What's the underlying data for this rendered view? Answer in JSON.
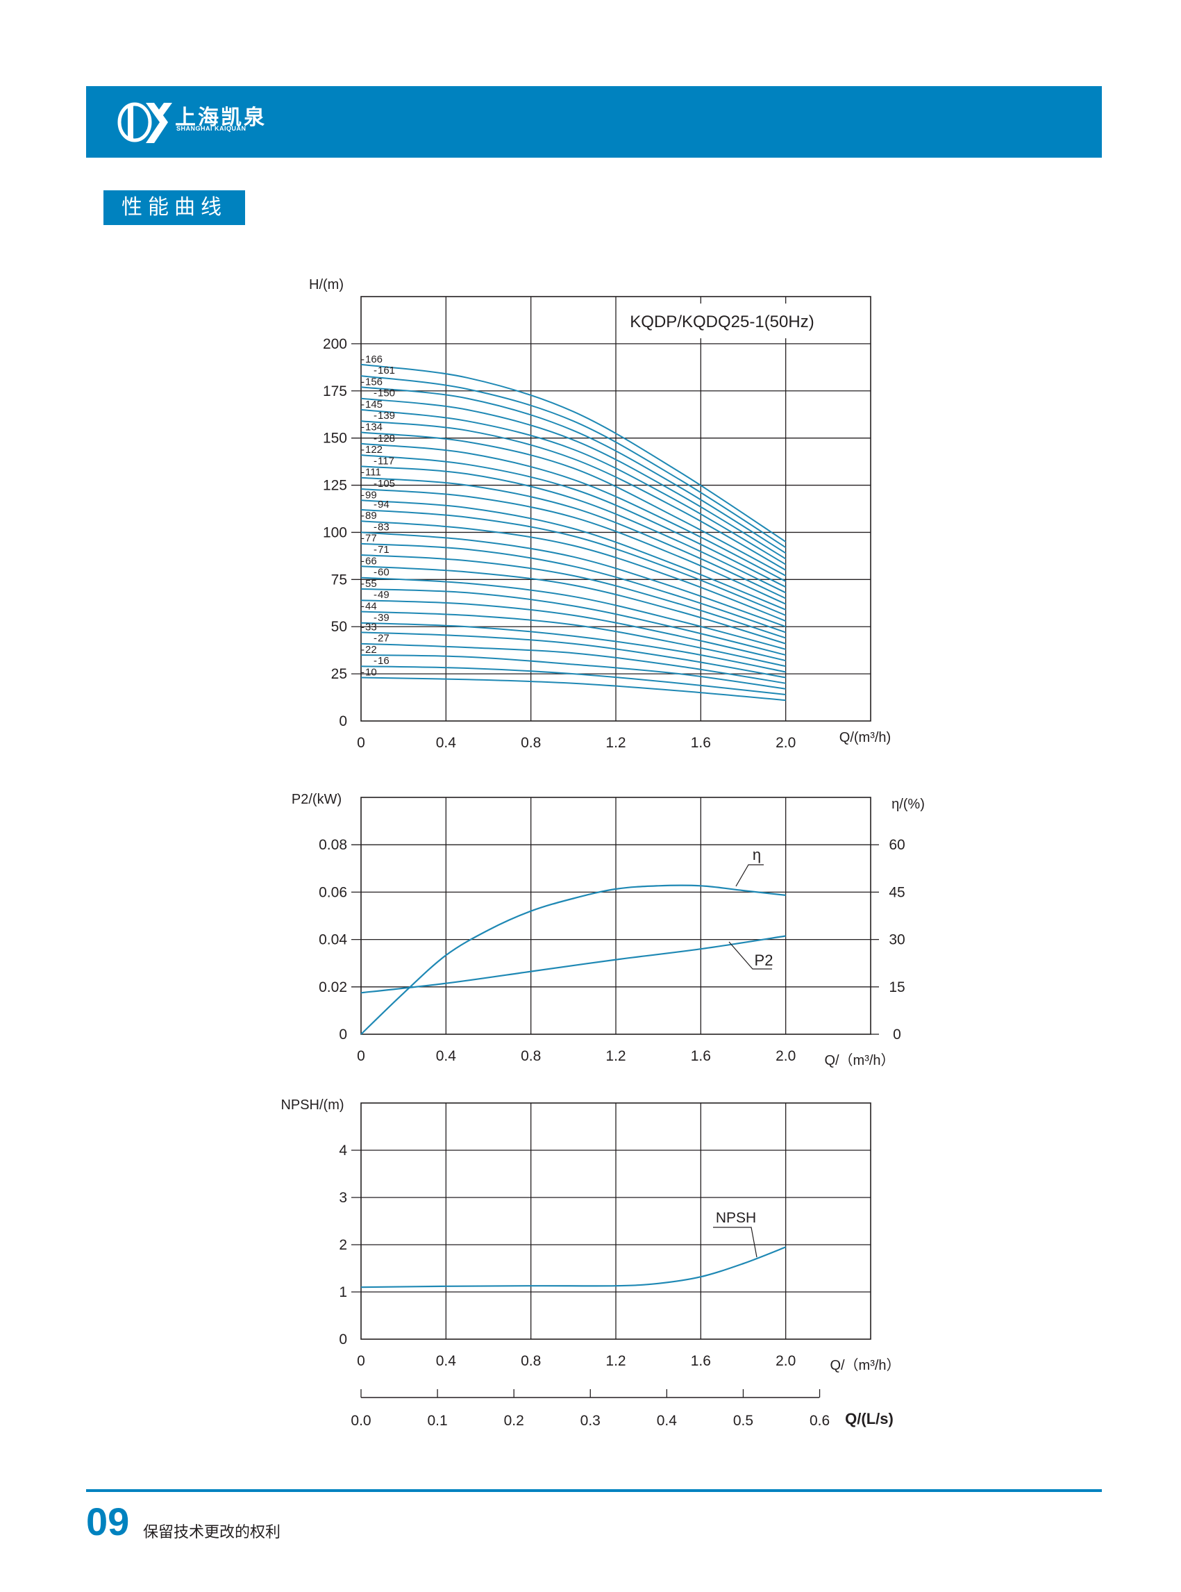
{
  "header": {
    "logo_cn": "上海凯泉",
    "logo_en": "SHANGHAI KAIQUAN",
    "bar_color": "#0082bf"
  },
  "section_label": "性能曲线",
  "footer": {
    "page_number": "09",
    "note": "保留技术更改的权利"
  },
  "colors": {
    "accent": "#0082bf",
    "curve": "#1e88b4",
    "grid": "#231f20"
  },
  "chart_data": [
    {
      "type": "line",
      "title": "KQDP/KQDQ25-1(50Hz)",
      "ylabel": "H/(m)",
      "xlabel": "Q/(m³/h)",
      "xlim": [
        0,
        2.4
      ],
      "ylim": [
        0,
        225
      ],
      "x_ticks": [
        "0",
        "0.4",
        "0.8",
        "1.2",
        "1.6",
        "2.0"
      ],
      "y_ticks": [
        "0",
        "25",
        "50",
        "75",
        "100",
        "125",
        "150",
        "175",
        "200"
      ],
      "grid": true,
      "series": [
        {
          "name": "166",
          "x": [
            0,
            0.5,
            1.0,
            1.5,
            2.0
          ],
          "values": [
            189,
            182,
            164,
            132,
            95
          ]
        },
        {
          "name": "161",
          "x": [
            0,
            0.5,
            1.0,
            1.5,
            2.0
          ],
          "values": [
            183,
            176,
            159,
            128,
            92
          ]
        },
        {
          "name": "156",
          "x": [
            0,
            0.5,
            1.0,
            1.5,
            2.0
          ],
          "values": [
            177,
            171,
            154,
            124,
            89
          ]
        },
        {
          "name": "150",
          "x": [
            0,
            0.5,
            1.0,
            1.5,
            2.0
          ],
          "values": [
            171,
            165,
            149,
            120,
            86
          ]
        },
        {
          "name": "145",
          "x": [
            0,
            0.5,
            1.0,
            1.5,
            2.0
          ],
          "values": [
            165,
            159,
            144,
            116,
            83
          ]
        },
        {
          "name": "139",
          "x": [
            0,
            0.5,
            1.0,
            1.5,
            2.0
          ],
          "values": [
            159,
            154,
            139,
            112,
            80
          ]
        },
        {
          "name": "134",
          "x": [
            0,
            0.5,
            1.0,
            1.5,
            2.0
          ],
          "values": [
            153,
            148,
            134,
            107,
            77
          ]
        },
        {
          "name": "128",
          "x": [
            0,
            0.5,
            1.0,
            1.5,
            2.0
          ],
          "values": [
            147,
            142,
            128,
            103,
            74
          ]
        },
        {
          "name": "122",
          "x": [
            0,
            0.5,
            1.0,
            1.5,
            2.0
          ],
          "values": [
            141,
            136,
            123,
            99,
            71
          ]
        },
        {
          "name": "117",
          "x": [
            0,
            0.5,
            1.0,
            1.5,
            2.0
          ],
          "values": [
            135,
            131,
            118,
            95,
            68
          ]
        },
        {
          "name": "111",
          "x": [
            0,
            0.5,
            1.0,
            1.5,
            2.0
          ],
          "values": [
            129,
            125,
            113,
            91,
            65
          ]
        },
        {
          "name": "105",
          "x": [
            0,
            0.5,
            1.0,
            1.5,
            2.0
          ],
          "values": [
            123,
            119,
            108,
            87,
            62
          ]
        },
        {
          "name": "99",
          "x": [
            0,
            0.5,
            1.0,
            1.5,
            2.0
          ],
          "values": [
            117,
            113,
            102,
            82,
            59
          ]
        },
        {
          "name": "94",
          "x": [
            0,
            0.5,
            1.0,
            1.5,
            2.0
          ],
          "values": [
            112,
            108,
            98,
            79,
            56
          ]
        },
        {
          "name": "89",
          "x": [
            0,
            0.5,
            1.0,
            1.5,
            2.0
          ],
          "values": [
            106,
            102,
            93,
            75,
            53
          ]
        },
        {
          "name": "83",
          "x": [
            0,
            0.5,
            1.0,
            1.5,
            2.0
          ],
          "values": [
            100,
            96,
            87,
            70,
            50
          ]
        },
        {
          "name": "77",
          "x": [
            0,
            0.5,
            1.0,
            1.5,
            2.0
          ],
          "values": [
            94,
            91,
            82,
            66,
            47
          ]
        },
        {
          "name": "71",
          "x": [
            0,
            0.5,
            1.0,
            1.5,
            2.0
          ],
          "values": [
            88,
            85,
            77,
            62,
            44
          ]
        },
        {
          "name": "66",
          "x": [
            0,
            0.5,
            1.0,
            1.5,
            2.0
          ],
          "values": [
            82,
            79,
            72,
            58,
            41
          ]
        },
        {
          "name": "60",
          "x": [
            0,
            0.5,
            1.0,
            1.5,
            2.0
          ],
          "values": [
            76,
            73,
            66,
            53,
            38
          ]
        },
        {
          "name": "55",
          "x": [
            0,
            0.5,
            1.0,
            1.5,
            2.0
          ],
          "values": [
            70,
            68,
            61,
            49,
            35
          ]
        },
        {
          "name": "49",
          "x": [
            0,
            0.5,
            1.0,
            1.5,
            2.0
          ],
          "values": [
            64,
            62,
            56,
            45,
            32
          ]
        },
        {
          "name": "44",
          "x": [
            0,
            0.5,
            1.0,
            1.5,
            2.0
          ],
          "values": [
            58,
            56,
            51,
            41,
            29
          ]
        },
        {
          "name": "39",
          "x": [
            0,
            0.5,
            1.0,
            1.5,
            2.0
          ],
          "values": [
            52,
            50,
            45,
            37,
            26
          ]
        },
        {
          "name": "33",
          "x": [
            0,
            0.5,
            1.0,
            1.5,
            2.0
          ],
          "values": [
            47,
            45,
            41,
            33,
            23
          ]
        },
        {
          "name": "27",
          "x": [
            0,
            0.5,
            1.0,
            1.5,
            2.0
          ],
          "values": [
            41,
            39,
            36,
            29,
            20
          ]
        },
        {
          "name": "22",
          "x": [
            0,
            0.5,
            1.0,
            1.5,
            2.0
          ],
          "values": [
            35,
            34,
            30,
            25,
            17
          ]
        },
        {
          "name": "16",
          "x": [
            0,
            0.5,
            1.0,
            1.5,
            2.0
          ],
          "values": [
            29,
            28,
            25,
            20,
            14
          ]
        },
        {
          "name": "10",
          "x": [
            0,
            0.5,
            1.0,
            1.5,
            2.0
          ],
          "values": [
            23,
            22,
            20,
            16,
            11
          ]
        }
      ]
    },
    {
      "type": "line",
      "ylabel": "P2/(kW)",
      "y2label": "η/(%)",
      "xlabel": "Q/（m³/h）",
      "xlim": [
        0,
        2.4
      ],
      "ylim": [
        0,
        0.1
      ],
      "y2lim": [
        0,
        75
      ],
      "x_ticks": [
        "0",
        "0.4",
        "0.8",
        "1.2",
        "1.6",
        "2.0"
      ],
      "y_ticks": [
        "0",
        "0.02",
        "0.04",
        "0.06",
        "0.08"
      ],
      "y2_ticks": [
        "0",
        "15",
        "30",
        "45",
        "60"
      ],
      "grid": true,
      "series": [
        {
          "name": "η",
          "axis": "right",
          "x": [
            0,
            0.2,
            0.4,
            0.6,
            0.8,
            1.0,
            1.2,
            1.4,
            1.6,
            1.8,
            2.0
          ],
          "values": [
            0,
            13,
            25,
            33,
            39,
            43,
            46,
            47,
            47,
            45.5,
            44
          ]
        },
        {
          "name": "P2",
          "axis": "left",
          "x": [
            0,
            0.4,
            0.8,
            1.2,
            1.6,
            2.0
          ],
          "values": [
            0.0175,
            0.0215,
            0.0265,
            0.0315,
            0.036,
            0.0415
          ]
        }
      ]
    },
    {
      "type": "line",
      "ylabel": "NPSH/(m)",
      "xlabel": "Q/（m³/h）",
      "x2label": "Q/(L/s)",
      "xlim": [
        0,
        2.4
      ],
      "ylim": [
        0,
        5
      ],
      "x_ticks": [
        "0",
        "0.4",
        "0.8",
        "1.2",
        "1.6",
        "2.0"
      ],
      "y_ticks": [
        "0",
        "1",
        "2",
        "3",
        "4"
      ],
      "x2_ticks": [
        "0.0",
        "0.1",
        "0.2",
        "0.3",
        "0.4",
        "0.5",
        "0.6"
      ],
      "grid": true,
      "series": [
        {
          "name": "NPSH",
          "x": [
            0,
            0.4,
            0.8,
            1.2,
            1.4,
            1.6,
            1.8,
            2.0
          ],
          "values": [
            1.1,
            1.12,
            1.13,
            1.13,
            1.18,
            1.32,
            1.6,
            1.95
          ]
        }
      ]
    }
  ]
}
